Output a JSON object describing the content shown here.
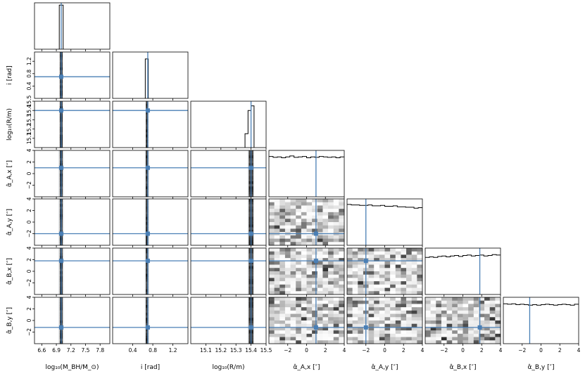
{
  "chart_data": {
    "type": "corner",
    "parameters": [
      {
        "key": "logM",
        "label": "log₁₀(M_BH/M_⊙)",
        "tick_labels": [
          "6.6",
          "6.9",
          "7.2",
          "7.5",
          "7.8"
        ],
        "ticks": [
          6.6,
          6.9,
          7.2,
          7.5,
          7.8
        ],
        "range": [
          6.45,
          8.0
        ],
        "truth": 7.0
      },
      {
        "key": "i",
        "label": "i [rad]",
        "tick_labels": [
          "0.4",
          "0.8",
          "1.2"
        ],
        "ticks": [
          0.4,
          0.8,
          1.2
        ],
        "range": [
          0.0,
          1.5
        ],
        "truth": 0.7
      },
      {
        "key": "logR",
        "label": "log₁₀(R/m)",
        "tick_labels": [
          "15.1",
          "15.2",
          "15.3",
          "15.4",
          "15.5"
        ],
        "ticks": [
          15.1,
          15.2,
          15.3,
          15.4,
          15.5
        ],
        "range": [
          15.0,
          15.5
        ],
        "truth": 15.4
      },
      {
        "key": "aAx",
        "label": "α̂_A,x [″]",
        "tick_labels": [
          "−2",
          "0",
          "2",
          "4"
        ],
        "ticks": [
          -2,
          0,
          2,
          4
        ],
        "range": [
          -4,
          4
        ],
        "truth": 1.0
      },
      {
        "key": "aAy",
        "label": "α̂_A,y [″]",
        "tick_labels": [
          "−2",
          "0",
          "2",
          "4"
        ],
        "ticks": [
          -2,
          0,
          2,
          4
        ],
        "range": [
          -4,
          4
        ],
        "truth": -2.0
      },
      {
        "key": "aBx",
        "label": "α̂_B,x [″]",
        "tick_labels": [
          "−2",
          "0",
          "2",
          "4"
        ],
        "ticks": [
          -2,
          0,
          2,
          4
        ],
        "range": [
          -4,
          4
        ],
        "truth": 1.8
      },
      {
        "key": "aBy",
        "label": "α̂_B,y [″]",
        "tick_labels": [
          "−2",
          "0",
          "2",
          "4"
        ],
        "ticks": [
          -2,
          0,
          2,
          4
        ],
        "range": [
          -4,
          4
        ],
        "truth": -1.2
      }
    ],
    "y_tick_labels": {
      "i": [
        "0.4",
        "0.8",
        "1.2"
      ],
      "logR": [
        "15.1",
        "15.2",
        "15.3",
        "15.4",
        "15.5"
      ],
      "aAx": [
        "−2",
        "0",
        "2",
        "4"
      ],
      "aAy": [
        "−2",
        "0",
        "2",
        "4"
      ],
      "aBx": [
        "−2",
        "0",
        "2",
        "4"
      ],
      "aBy": [
        "−2",
        "0",
        "2",
        "4"
      ]
    },
    "y_axis_labels": {
      "i": "i [rad]",
      "logR": "log₁₀(R/m)",
      "aAx": "α̂_A,x [″]",
      "aAy": "α̂_A,y [″]",
      "aBx": "α̂_B,x [″]",
      "aBy": "α̂_B,y [″]"
    },
    "histograms": {
      "logM": {
        "edges": [
          6.96,
          7.0,
          7.04
        ],
        "counts": [
          0.95,
          0.95
        ]
      },
      "i": {
        "edges": [
          0.65,
          0.68,
          0.71
        ],
        "counts": [
          0.85,
          0.85
        ]
      },
      "logR": {
        "edges": [
          15.36,
          15.38,
          15.4,
          15.42
        ],
        "counts": [
          0.3,
          0.8,
          0.9
        ]
      },
      "aAx": {
        "bins": 18,
        "counts": [
          0.87,
          0.85,
          0.86,
          0.84,
          0.86,
          0.88,
          0.85,
          0.86,
          0.87,
          0.84,
          0.86,
          0.85,
          0.87,
          0.86,
          0.85,
          0.86,
          0.84,
          0.86
        ]
      },
      "aAy": {
        "bins": 18,
        "counts": [
          0.88,
          0.87,
          0.87,
          0.86,
          0.86,
          0.87,
          0.85,
          0.85,
          0.86,
          0.84,
          0.84,
          0.85,
          0.83,
          0.83,
          0.82,
          0.82,
          0.8,
          0.81
        ]
      },
      "aBx": {
        "bins": 18,
        "counts": [
          0.8,
          0.81,
          0.8,
          0.82,
          0.83,
          0.81,
          0.83,
          0.84,
          0.82,
          0.84,
          0.85,
          0.83,
          0.84,
          0.85,
          0.83,
          0.84,
          0.86,
          0.85
        ]
      },
      "aBy": {
        "bins": 18,
        "counts": [
          0.86,
          0.85,
          0.86,
          0.84,
          0.85,
          0.84,
          0.83,
          0.84,
          0.83,
          0.84,
          0.85,
          0.84,
          0.83,
          0.84,
          0.85,
          0.84,
          0.83,
          0.85
        ]
      }
    },
    "narrow_bands": {
      "logM": [
        6.97,
        7.03
      ],
      "i": [
        0.66,
        0.71
      ],
      "logR": [
        15.385,
        15.415
      ]
    },
    "truth_color": "#4a7fb5",
    "hist_color": "#000000",
    "grid": false,
    "legend": "none"
  }
}
